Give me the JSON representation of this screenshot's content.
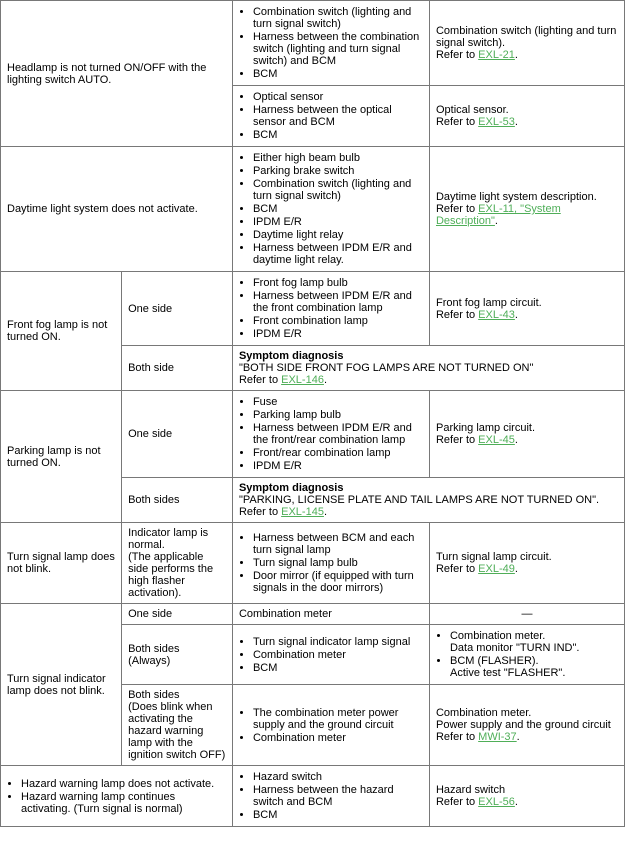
{
  "rows": {
    "r1": {
      "symptom": "Headlamp is not turned ON/OFF with the lighting switch AUTO.",
      "topCauses": [
        "Combination switch (lighting and turn signal switch)",
        "Harness between the combination switch (lighting and turn signal switch) and BCM",
        "BCM"
      ],
      "topRefLead": "Combination switch (lighting and turn signal switch).",
      "topRefPrefix": "Refer to ",
      "topRefLink": "EXL-21",
      "botCauses": [
        "Optical sensor",
        "Harness between the optical sensor and BCM",
        "BCM"
      ],
      "botRefLead": "Optical sensor.",
      "botRefPrefix": "Refer to ",
      "botRefLink": "EXL-53"
    },
    "r2": {
      "symptom": "Daytime light system does not activate.",
      "causes": [
        "Either high beam bulb",
        "Parking brake switch",
        "Combination switch (lighting and turn signal switch)",
        "BCM",
        "IPDM E/R",
        "Daytime light relay",
        "Harness between IPDM E/R and daytime light relay."
      ],
      "refLead": "Daytime light system description.",
      "refPrefix": "Refer to ",
      "refLink": "EXL-11, \"System Description\""
    },
    "r3": {
      "symptom": "Front fog lamp is not turned ON.",
      "oneSideLabel": "One side",
      "oneSideCauses": [
        "Front fog lamp bulb",
        "Harness between IPDM E/R and the front combination lamp",
        "Front combination lamp",
        "IPDM E/R"
      ],
      "oneSideRefLead": "Front fog lamp circuit.",
      "oneSideRefPrefix": "Refer to ",
      "oneSideRefLink": "EXL-43",
      "bothSideLabel": "Both side",
      "bothTitle": "Symptom diagnosis",
      "bothText": "\"BOTH SIDE FRONT FOG LAMPS ARE NOT TURNED ON\"",
      "bothPrefix": "Refer to ",
      "bothLink": "EXL-146"
    },
    "r4": {
      "symptom": "Parking lamp is not turned ON.",
      "oneSideLabel": "One side",
      "oneSideCauses": [
        "Fuse",
        "Parking lamp bulb",
        "Harness between IPDM E/R and the front/rear combination lamp",
        "Front/rear combination lamp",
        "IPDM E/R"
      ],
      "oneSideRefLead": "Parking lamp circuit.",
      "oneSideRefPrefix": "Refer to ",
      "oneSideRefLink": "EXL-45",
      "bothSidesLabel": "Both sides",
      "bothTitle": "Symptom diagnosis",
      "bothText": "\"PARKING, LICENSE PLATE AND TAIL LAMPS ARE NOT TURNED ON\".",
      "bothPrefix": "Refer to ",
      "bothLink": "EXL-145"
    },
    "r5": {
      "symptom": "Turn signal lamp does not blink.",
      "cond": "Indicator lamp is normal.\n(The applicable side performs the high flasher activation).",
      "causes": [
        "Harness between BCM and each turn signal lamp",
        "Turn signal lamp bulb",
        "Door mirror (if equipped with turn signals in the door mirrors)"
      ],
      "refLead": "Turn signal lamp circuit.",
      "refPrefix": "Refer to ",
      "refLink": "EXL-49"
    },
    "r6": {
      "symptom": "Turn signal indicator lamp does not blink.",
      "oneSideLabel": "One side",
      "oneSideCause": "Combination meter",
      "oneSideRef": "—",
      "bothAlwaysLabel": "Both sides\n(Always)",
      "bothAlwaysCauses": [
        "Turn signal indicator lamp signal",
        "Combination meter",
        "BCM"
      ],
      "bothAlwaysRefs": [
        "Combination meter.\nData monitor \"TURN IND\".",
        "BCM (FLASHER).\nActive test \"FLASHER\"."
      ],
      "bothCondLabel": "Both sides\n(Does blink when activating the hazard warning lamp with the ignition switch OFF)",
      "bothCondCauses": [
        "The combination meter power supply and the ground circuit",
        "Combination meter"
      ],
      "bothCondRefLead": "Combination meter.",
      "bothCondRefText": "Power supply and the ground circuit",
      "bothCondRefPrefix": "Refer to ",
      "bothCondRefLink": "MWI-37"
    },
    "r7": {
      "symptoms": [
        "Hazard warning lamp does not activate.",
        "Hazard warning lamp continues activating. (Turn signal is normal)"
      ],
      "causes": [
        "Hazard switch",
        "Harness between the hazard switch and BCM",
        "BCM"
      ],
      "refLead": "Hazard switch",
      "refPrefix": "Refer to ",
      "refLink": "EXL-56"
    }
  }
}
